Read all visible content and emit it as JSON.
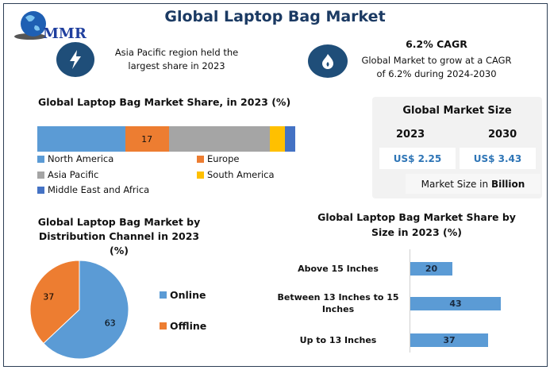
{
  "header": {
    "title": "Global Laptop Bag Market",
    "logo_text": "MMR"
  },
  "highlights": [
    {
      "icon": "lightning-icon",
      "text": "Asia Pacific region held the largest share in 2023"
    },
    {
      "icon": "flame-icon",
      "heading": "6.2% CAGR",
      "text": "Global Market to grow at a CAGR of 6.2% during 2024-2030"
    }
  ],
  "market_size": {
    "title": "Global Market Size",
    "year1": "2023",
    "year2": "2030",
    "value1": "US$ 2.25",
    "value2": "US$ 3.43",
    "unit_prefix": "Market Size in ",
    "unit_bold": "Billion"
  },
  "chart_data": [
    {
      "type": "bar",
      "orientation": "stacked-horizontal",
      "title": "Global Laptop Bag Market Share, in 2023 (%)",
      "series": [
        {
          "name": "North America",
          "value": 34,
          "color": "#5b9bd5"
        },
        {
          "name": "Europe",
          "value": 17,
          "color": "#ed7d31",
          "label": "17"
        },
        {
          "name": "Asia Pacific",
          "value": 39,
          "color": "#a5a5a5"
        },
        {
          "name": "South America",
          "value": 6,
          "color": "#ffc000"
        },
        {
          "name": "Middle East and Africa",
          "value": 4,
          "color": "#4472c4"
        }
      ]
    },
    {
      "type": "pie",
      "title": "Global Laptop Bag Market by Distribution Channel in 2023 (%)",
      "categories": [
        "Online",
        "Offline"
      ],
      "values": [
        63,
        37
      ],
      "colors": [
        "#5b9bd5",
        "#ed7d31"
      ],
      "legend": "right"
    },
    {
      "type": "bar",
      "orientation": "horizontal",
      "title": "Global Laptop Bag Market Share by Size in 2023 (%)",
      "categories": [
        "Above 15 Inches",
        "Between 13 Inches to 15 Inches",
        "Up to 13 Inches"
      ],
      "values": [
        20,
        43,
        37
      ],
      "color": "#5b9bd5"
    }
  ]
}
